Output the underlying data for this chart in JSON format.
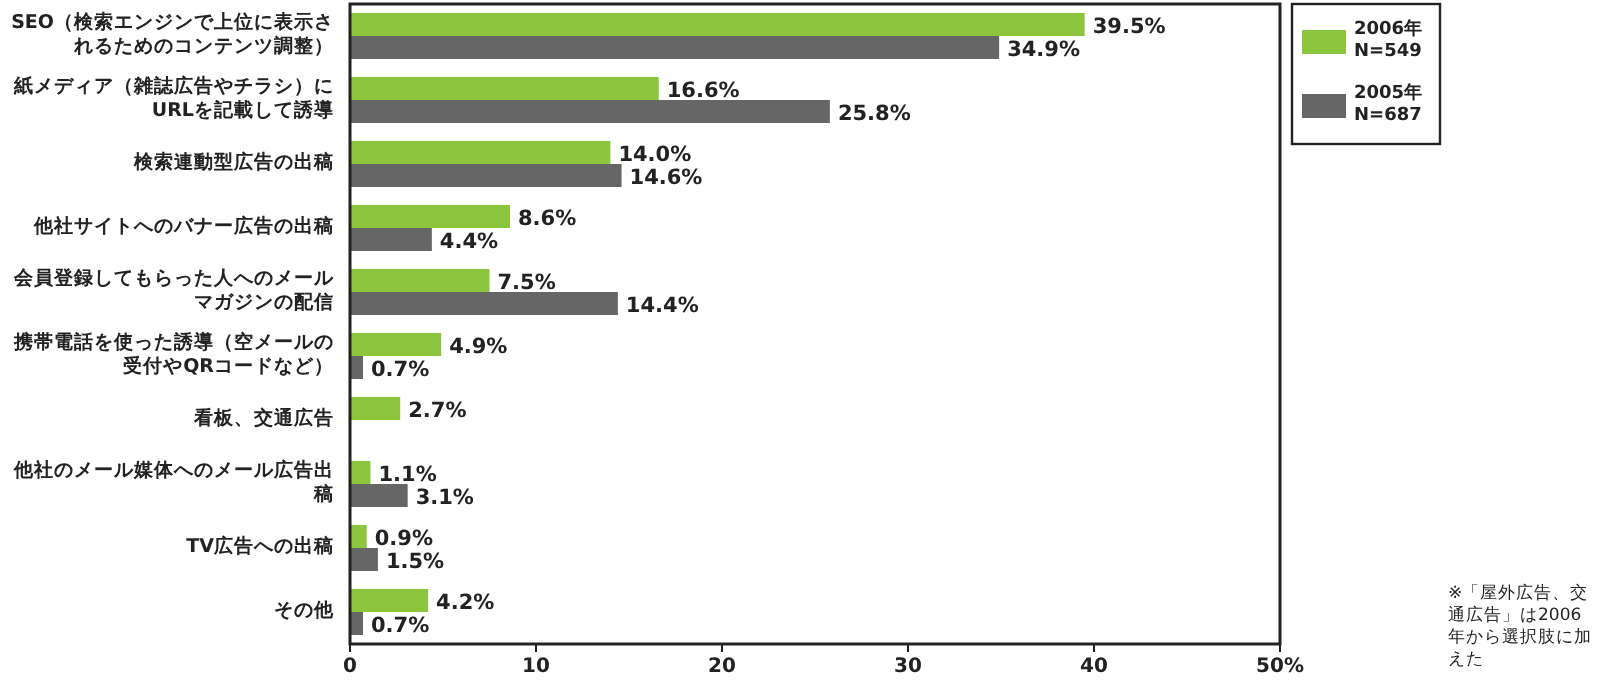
{
  "chart_data": {
    "type": "bar",
    "orientation": "horizontal",
    "categories": [
      "SEO（検索エンジンで上位に表示されるためのコンテンツ調整）",
      "紙メディア（雑誌広告やチラシ）にURLを記載して誘導",
      "検索連動型広告の出稿",
      "他社サイトへのバナー広告の出稿",
      "会員登録してもらった人へのメールマガジンの配信",
      "携帯電話を使った誘導（空メールの受付やQRコードなど）",
      "看板、交通広告",
      "他社のメール媒体へのメール広告出稿",
      "TV広告への出稿",
      "その他"
    ],
    "series": [
      {
        "name": "2006年\nN=549",
        "color": "#8cc63e",
        "values": [
          39.5,
          16.6,
          14.0,
          8.6,
          7.5,
          4.9,
          2.7,
          1.1,
          0.9,
          4.2
        ],
        "value_labels": [
          "39.5%",
          "16.6%",
          "14.0%",
          "8.6%",
          "7.5%",
          "4.9%",
          "2.7%",
          "1.1%",
          "0.9%",
          "4.2%"
        ]
      },
      {
        "name": "2005年\nN=687",
        "color": "#666666",
        "values": [
          34.9,
          25.8,
          14.6,
          4.4,
          14.4,
          0.7,
          null,
          3.1,
          1.5,
          0.7
        ],
        "value_labels": [
          "34.9%",
          "25.8%",
          "14.6%",
          "4.4%",
          "14.4%",
          "0.7%",
          null,
          "3.1%",
          "1.5%",
          "0.7%"
        ]
      }
    ],
    "xlim": [
      0,
      50
    ],
    "xticks": [
      0,
      10,
      20,
      30,
      40,
      {
        "value": 50,
        "label": "50%"
      }
    ],
    "legend": "top right",
    "grid": false,
    "annotations": [
      "※「屋外広告、交通広告」は2006年から選択肢に加えた"
    ]
  }
}
